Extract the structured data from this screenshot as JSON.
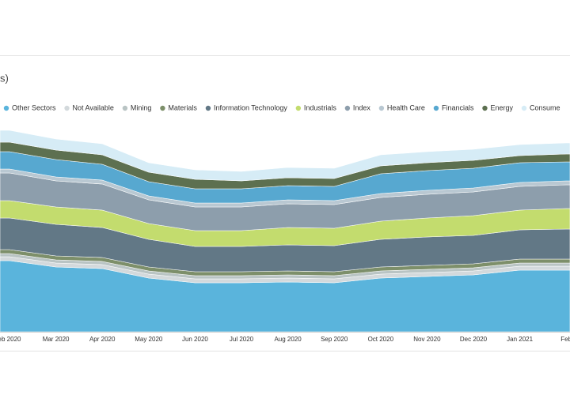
{
  "chart_data": {
    "type": "stacked-area",
    "title": "s)",
    "categories": [
      "eb 2020",
      "Mar 2020",
      "Apr 2020",
      "May 2020",
      "Jun 2020",
      "Jul 2020",
      "Aug 2020",
      "Sep 2020",
      "Oct 2020",
      "Nov 2020",
      "Dec 2020",
      "Jan 2021",
      "Feb"
    ],
    "ylim": [
      0,
      280
    ],
    "series": [
      {
        "name": "Other Sectors",
        "color": "#5ab4dc",
        "values": [
          90,
          82,
          80,
          68,
          62,
          62,
          63,
          62,
          68,
          70,
          72,
          78,
          78
        ]
      },
      {
        "name": "Not Available",
        "color": "#d3d9dc",
        "values": [
          5,
          5,
          5,
          5,
          5,
          5,
          5,
          5,
          5,
          5,
          5,
          5,
          5
        ]
      },
      {
        "name": "Mining",
        "color": "#b9c4c4",
        "values": [
          4,
          4,
          4,
          4,
          4,
          4,
          4,
          4,
          4,
          4,
          4,
          4,
          4
        ]
      },
      {
        "name": "Materials",
        "color": "#7d8f6a",
        "values": [
          5,
          5,
          5,
          5,
          5,
          5,
          5,
          5,
          5,
          5,
          5,
          5,
          5
        ]
      },
      {
        "name": "Information Technology",
        "color": "#627886",
        "values": [
          40,
          40,
          38,
          35,
          32,
          32,
          33,
          33,
          35,
          36,
          36,
          37,
          38
        ]
      },
      {
        "name": "Industrials",
        "color": "#c3dc6e",
        "values": [
          22,
          22,
          22,
          20,
          20,
          20,
          22,
          22,
          23,
          24,
          25,
          25,
          26
        ]
      },
      {
        "name": "Index",
        "color": "#8d9eac",
        "values": [
          35,
          33,
          33,
          30,
          30,
          30,
          30,
          30,
          30,
          30,
          30,
          30,
          30
        ]
      },
      {
        "name": "Health Care",
        "color": "#b9c8d2",
        "values": [
          5,
          5,
          5,
          5,
          5,
          5,
          5,
          5,
          5,
          5,
          5,
          5,
          5
        ]
      },
      {
        "name": "Financials",
        "color": "#57a8d0",
        "values": [
          22,
          22,
          20,
          18,
          18,
          18,
          18,
          18,
          25,
          25,
          25,
          25,
          24
        ]
      },
      {
        "name": "Energy",
        "color": "#5d7050",
        "values": [
          12,
          12,
          12,
          12,
          12,
          10,
          10,
          10,
          10,
          10,
          10,
          9,
          10
        ]
      },
      {
        "name": "Consume",
        "color": "#d6ecf6",
        "values": [
          15,
          14,
          14,
          12,
          12,
          12,
          13,
          13,
          14,
          14,
          14,
          14,
          14
        ]
      }
    ]
  }
}
